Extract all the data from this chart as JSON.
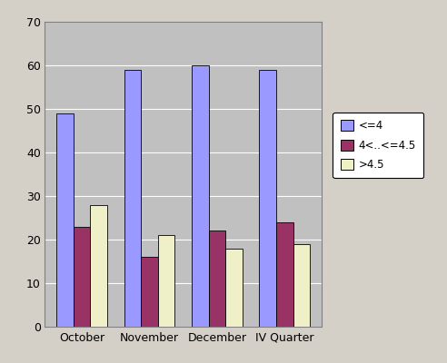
{
  "categories": [
    "October",
    "November",
    "December",
    "IV Quarter"
  ],
  "series": {
    "<=4": [
      49,
      59,
      60,
      59
    ],
    "4<..<=4.5": [
      23,
      16,
      22,
      24
    ],
    ">4.5": [
      28,
      21,
      18,
      19
    ]
  },
  "colors": {
    "<=4": "#9999ff",
    "4<..<=4.5": "#993366",
    ">4.5": "#f0f0c8"
  },
  "legend_labels": [
    "<=4",
    "4<..<=4.5",
    ">4.5"
  ],
  "ylim": [
    0,
    70
  ],
  "yticks": [
    0,
    10,
    20,
    30,
    40,
    50,
    60,
    70
  ],
  "plot_bg_color": "#c0c0c0",
  "outer_bg_color": "#d4d0c8",
  "bar_border_color": "#000000",
  "grid_color": "#ffffff",
  "legend_border_color": "#000000",
  "bar_width": 0.25,
  "figsize": [
    4.92,
    4.0
  ],
  "dpi": 100
}
